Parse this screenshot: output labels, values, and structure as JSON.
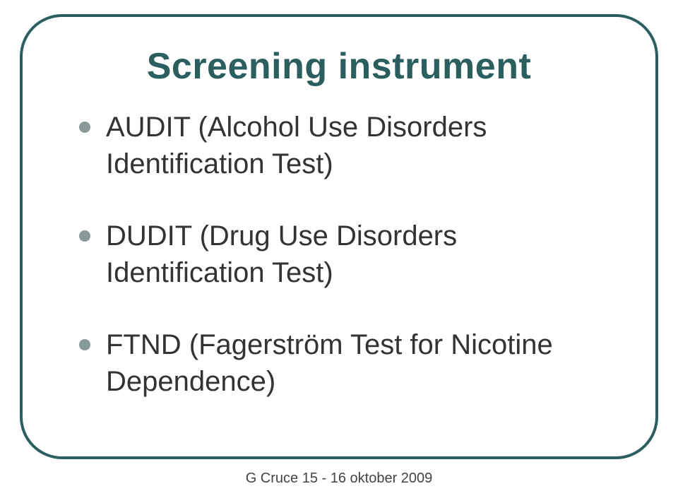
{
  "slide": {
    "title": "Screening instrument",
    "title_color": "#2b5e5e",
    "title_fontsize": 52,
    "border_color": "#2b5e5e",
    "border_width": 4,
    "border_radius": 60,
    "background_color": "#ffffff",
    "bullet_color": "#889999",
    "bullet_size": 16,
    "body_fontsize": 40,
    "body_color": "#333333",
    "bullets": [
      "AUDIT (Alcohol Use Disorders Identification Test)",
      "DUDIT (Drug Use Disorders Identification Test)",
      "FTND (Fagerström Test for Nicotine Dependence)"
    ]
  },
  "footer": {
    "text": "G Cruce  15 - 16 oktober 2009",
    "fontsize": 20,
    "color": "#444444"
  }
}
